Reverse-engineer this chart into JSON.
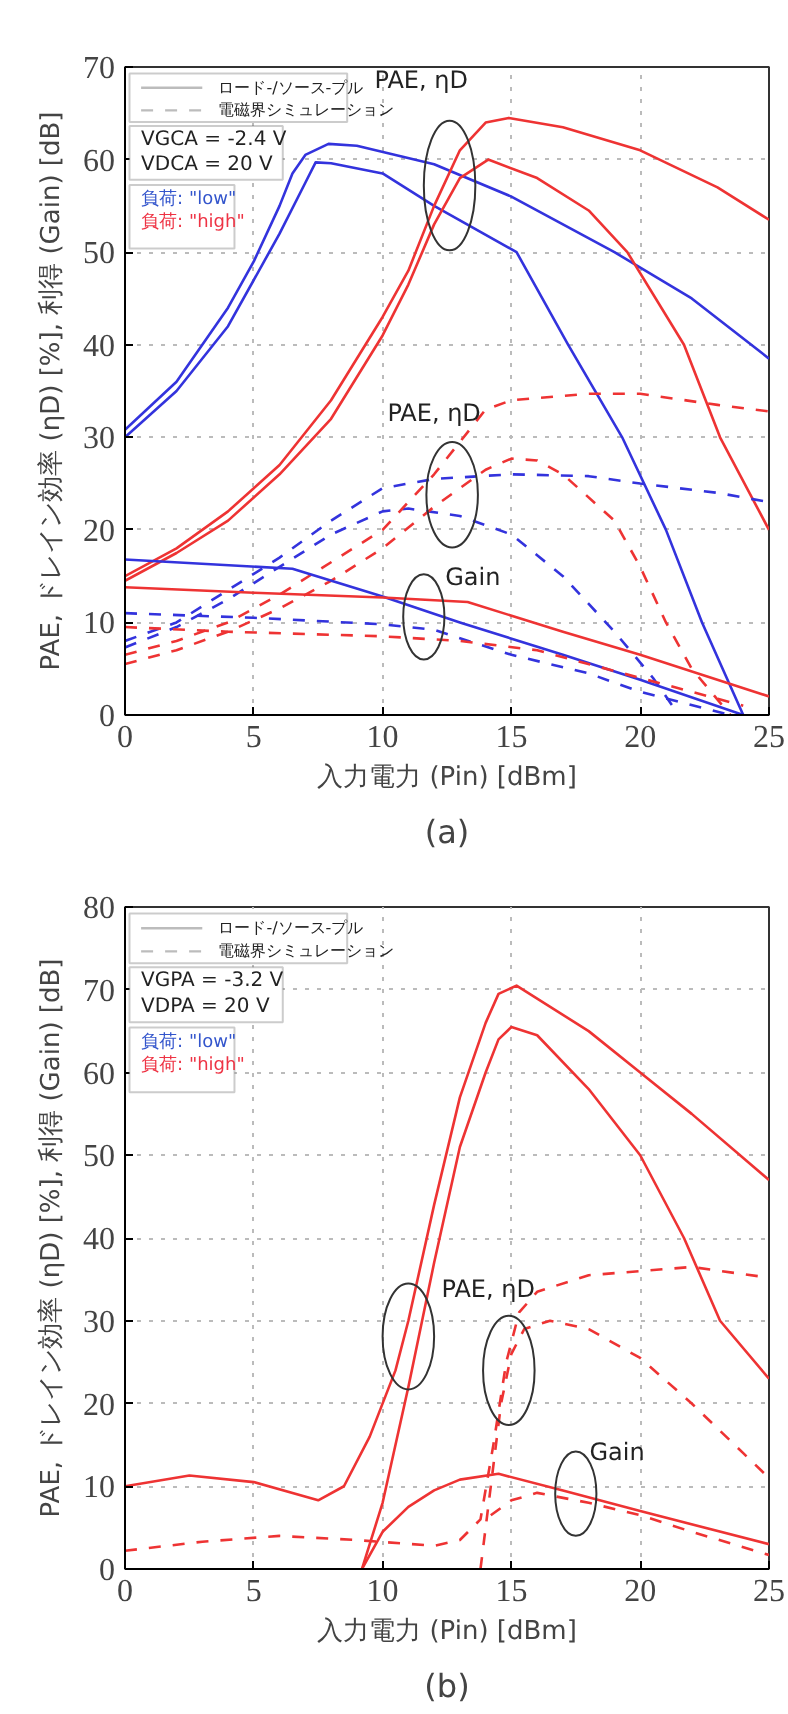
{
  "chart_data": [
    {
      "type": "line",
      "title": "(a)",
      "xlabel": "入力電力 (Pin) [dBm]",
      "ylabel": "PAE, ドレイン効率 (ηD) [%], 利得 (Gain) [dB]",
      "xlim": [
        0,
        25
      ],
      "ylim": [
        0,
        70
      ],
      "xticks": [
        0,
        5,
        10,
        15,
        20,
        25
      ],
      "yticks": [
        0,
        10,
        20,
        30,
        40,
        50,
        60,
        70
      ],
      "grid": true,
      "annotations": [
        "ロード-/ソース-プル",
        "電磁界シミュレーション",
        "VGCA = -2.4 V",
        "VDCA = 20 V",
        "負荷: \"low\"",
        "負荷: \"high\"",
        "PAE, ηD",
        "PAE, ηD",
        "Gain"
      ],
      "series": [
        {
          "color": "#3333dd",
          "line_style": "solid",
          "x": [
            0,
            2,
            4,
            5,
            6,
            6.5,
            7,
            7.9,
            9,
            12,
            15,
            19,
            22,
            25
          ],
          "values": [
            30.8,
            36,
            44,
            49,
            55,
            58.5,
            60.5,
            61.7,
            61.5,
            59.5,
            56,
            50,
            45,
            38.5
          ]
        },
        {
          "color": "#3333dd",
          "line_style": "solid",
          "x": [
            0,
            2,
            4,
            6,
            7,
            7.4,
            8,
            10,
            12,
            15.2,
            17.2,
            19.3,
            21,
            22.4,
            24
          ],
          "values": [
            30,
            35,
            42,
            52,
            57.5,
            59.7,
            59.6,
            58.5,
            55,
            50,
            40,
            30,
            20,
            10,
            0
          ]
        },
        {
          "color": "#ee3333",
          "line_style": "solid",
          "x": [
            0,
            2,
            4,
            6,
            8,
            10,
            11,
            12,
            13,
            14,
            14.9,
            17,
            20,
            23,
            25
          ],
          "values": [
            15,
            18,
            22,
            27,
            34,
            43,
            48,
            55,
            61,
            64,
            64.5,
            63.5,
            61,
            57,
            53.5
          ]
        },
        {
          "color": "#ee3333",
          "line_style": "solid",
          "x": [
            0,
            2,
            4,
            6,
            8,
            10,
            11,
            12,
            13,
            14.1,
            16,
            18,
            19.5,
            21.7,
            23.1,
            25
          ],
          "values": [
            14.5,
            17.5,
            21,
            26,
            32,
            41,
            46.5,
            53,
            58,
            60,
            58,
            54.5,
            50,
            40,
            30,
            20
          ]
        },
        {
          "color": "#3333dd",
          "line_style": "dashed",
          "x": [
            0,
            2,
            4,
            6,
            8,
            10,
            12,
            15,
            18,
            20,
            23,
            25
          ],
          "values": [
            8,
            10,
            13.5,
            17,
            21,
            24.5,
            25.5,
            26,
            25.8,
            25,
            24,
            23
          ]
        },
        {
          "color": "#3333dd",
          "line_style": "dashed",
          "x": [
            0,
            2,
            4,
            6,
            8,
            10,
            11,
            13,
            15,
            17,
            19,
            20.5,
            21.5
          ],
          "values": [
            7.3,
            9.5,
            12.5,
            16,
            19.5,
            22,
            22.3,
            21.5,
            19.5,
            15,
            9,
            4,
            0
          ]
        },
        {
          "color": "#ee3333",
          "line_style": "dashed",
          "x": [
            0,
            2,
            4,
            6,
            8,
            10,
            12,
            13,
            14,
            15,
            18,
            20,
            23,
            25
          ],
          "values": [
            6.5,
            8,
            10,
            13,
            16.5,
            20,
            26,
            29.5,
            33,
            34,
            34.7,
            34.7,
            33.5,
            32.8
          ]
        },
        {
          "color": "#ee3333",
          "line_style": "dashed",
          "x": [
            0,
            2,
            4,
            6,
            8,
            10,
            12,
            14,
            15,
            16,
            17,
            19,
            20,
            21,
            22,
            23.5
          ],
          "values": [
            5.5,
            7,
            9,
            11.5,
            14.5,
            18,
            22.5,
            26.5,
            27.7,
            27.5,
            26,
            21,
            16,
            10,
            5,
            0
          ]
        },
        {
          "color": "#3333dd",
          "line_style": "solid",
          "x": [
            0,
            6.5,
            10,
            13,
            17,
            20,
            24
          ],
          "values": [
            16.8,
            15.8,
            12.8,
            10,
            6.5,
            3.8,
            0
          ]
        },
        {
          "color": "#ee3333",
          "line_style": "solid",
          "x": [
            0,
            5,
            10,
            13.3,
            17,
            20,
            25
          ],
          "values": [
            13.8,
            13.2,
            12.7,
            12.2,
            9,
            6.5,
            2
          ]
        },
        {
          "color": "#3333dd",
          "line_style": "dashed",
          "x": [
            0,
            5,
            10,
            12,
            15,
            18,
            20,
            23.5
          ],
          "values": [
            11,
            10.5,
            9.8,
            9.2,
            6.5,
            4.5,
            2.5,
            0
          ]
        },
        {
          "color": "#ee3333",
          "line_style": "dashed",
          "x": [
            0,
            4,
            10,
            13,
            16,
            20,
            24
          ],
          "values": [
            9.5,
            9,
            8.5,
            8,
            7,
            4,
            1
          ]
        }
      ]
    },
    {
      "type": "line",
      "title": "(b)",
      "xlabel": "入力電力 (Pin) [dBm]",
      "ylabel": "PAE, ドレイン効率 (ηD) [%], 利得 (Gain) [dB]",
      "xlim": [
        0,
        25
      ],
      "ylim": [
        0,
        80
      ],
      "xticks": [
        0,
        5,
        10,
        15,
        20,
        25
      ],
      "yticks": [
        0,
        10,
        20,
        30,
        40,
        50,
        60,
        70,
        80
      ],
      "grid": true,
      "annotations": [
        "ロード-/ソース-プル",
        "電磁界シミュレーション",
        "VGPA = -3.2 V",
        "VDPA = 20 V",
        "負荷: \"low\"",
        "負荷: \"high\"",
        "PAE, ηD",
        "Gain"
      ],
      "series": [
        {
          "color": "#ee3333",
          "line_style": "solid",
          "x": [
            0,
            2.5,
            5,
            7.5,
            8.5,
            9.5,
            10.5,
            11,
            12,
            13,
            14,
            14.5,
            15.2,
            18,
            20,
            22,
            25
          ],
          "values": [
            10,
            11.3,
            10.5,
            8.3,
            10,
            16,
            24,
            30,
            44,
            57,
            66,
            69.5,
            70.5,
            65,
            60,
            55,
            47
          ]
        },
        {
          "color": "#ee3333",
          "line_style": "solid",
          "x": [
            9.2,
            10,
            11,
            12,
            13,
            14,
            14.5,
            15,
            16,
            18,
            20,
            21.7,
            23.1,
            25
          ],
          "values": [
            0,
            8,
            22,
            37,
            51,
            60,
            64,
            65.5,
            64.5,
            58,
            50,
            40,
            30,
            23
          ]
        },
        {
          "color": "#ee3333",
          "line_style": "solid",
          "x": [
            9.2,
            10,
            11,
            12,
            13,
            14.5,
            17,
            20,
            25
          ],
          "values": [
            0,
            4.5,
            7.5,
            9.5,
            10.8,
            11.5,
            9.5,
            7,
            3
          ]
        },
        {
          "color": "#ee3333",
          "line_style": "dashed",
          "x": [
            0,
            3,
            6,
            9,
            12,
            13,
            13.8,
            14.3,
            14.8,
            15.3,
            16,
            18,
            22,
            25
          ],
          "values": [
            2.2,
            3.3,
            4,
            3.5,
            2.8,
            3.5,
            6,
            15,
            25,
            31,
            33.5,
            35.5,
            36.5,
            35.2
          ]
        },
        {
          "color": "#ee3333",
          "line_style": "dashed",
          "x": [
            13.8,
            14.2,
            14.6,
            15,
            15.5,
            16.5,
            18,
            20,
            22,
            24,
            25
          ],
          "values": [
            0,
            10,
            20,
            26,
            29,
            30,
            29,
            25.5,
            20,
            14,
            11
          ]
        },
        {
          "color": "#ee3333",
          "line_style": "dashed",
          "x": [
            14.2,
            15,
            16,
            18,
            20,
            22,
            25
          ],
          "values": [
            6.5,
            8.3,
            9.2,
            8,
            6.5,
            4.5,
            1.7
          ]
        }
      ]
    }
  ]
}
